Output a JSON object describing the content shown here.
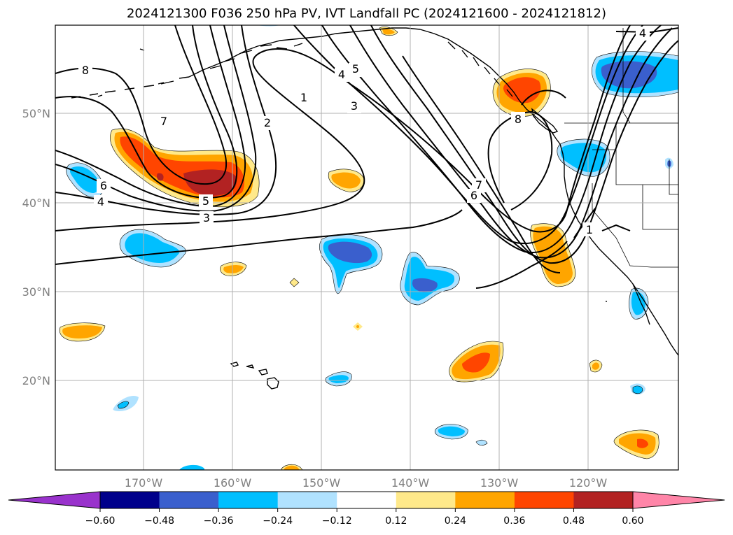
{
  "title": "2024121300 F036 250 hPa PV, IVT Landfall PC (2024121600 - 2024121812)",
  "map": {
    "lat_labels": [
      "50°N",
      "40°N",
      "30°N",
      "20°N"
    ],
    "lon_labels": [
      "170°W",
      "160°W",
      "150°W",
      "140°W",
      "130°W",
      "120°W"
    ],
    "pv_contour_labels": [
      "8",
      "7",
      "6",
      "4",
      "5",
      "3",
      "2",
      "1",
      "4",
      "5",
      "3",
      "7",
      "6",
      "8",
      "1",
      "4"
    ]
  },
  "colorbar": {
    "ticks": [
      "−0.60",
      "−0.48",
      "−0.36",
      "−0.24",
      "−0.12",
      "0.12",
      "0.24",
      "0.36",
      "0.48",
      "0.60"
    ],
    "colors": [
      "#9932cc",
      "#00008b",
      "#3a5fcd",
      "#00bfff",
      "#b0e2ff",
      "#ffffff",
      "#ffe98a",
      "#ffa500",
      "#ff4500",
      "#b22222",
      "#ff85a8"
    ]
  },
  "colors": {
    "neg_strong": "#3a5fcd",
    "neg_mid": "#00bfff",
    "neg_weak": "#b0e2ff",
    "pos_weak": "#ffe98a",
    "pos_mid": "#ffa500",
    "pos_strong": "#ff4500",
    "pos_max": "#b22222",
    "grid": "#b0b0b0",
    "contour": "#000000"
  }
}
